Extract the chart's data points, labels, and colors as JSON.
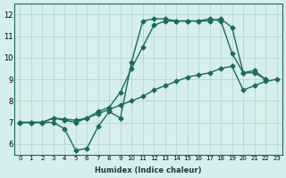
{
  "title": "",
  "xlabel": "Humidex (Indice chaleur)",
  "ylabel": "",
  "bg_color": "#d6eeed",
  "line_color": "#1a6b5e",
  "grid_color": "#b0cece",
  "xlim": [
    0,
    23
  ],
  "ylim": [
    5.5,
    12.5
  ],
  "xticks": [
    0,
    1,
    2,
    3,
    4,
    5,
    6,
    7,
    8,
    9,
    10,
    11,
    12,
    13,
    14,
    15,
    16,
    17,
    18,
    19,
    20,
    21,
    22,
    23
  ],
  "yticks": [
    6,
    7,
    8,
    9,
    10,
    11,
    12
  ],
  "line1_x": [
    0,
    1,
    2,
    3,
    4,
    5,
    6,
    7,
    8,
    9,
    10,
    11,
    12,
    13,
    14,
    15,
    16,
    17,
    18,
    19,
    20,
    21,
    22,
    23
  ],
  "line1_y": [
    7.0,
    7.0,
    7.0,
    7.0,
    6.7,
    5.7,
    5.8,
    6.8,
    7.5,
    7.2,
    9.8,
    11.7,
    11.8,
    11.8,
    11.7,
    11.7,
    11.7,
    11.8,
    11.7,
    10.2,
    9.3,
    9.3,
    9.0,
    null
  ],
  "line2_x": [
    0,
    1,
    2,
    3,
    4,
    5,
    6,
    7,
    8,
    9,
    10,
    11,
    12,
    13,
    14,
    15,
    16,
    17,
    18,
    19,
    20,
    21,
    22,
    23
  ],
  "line2_y": [
    7.0,
    7.0,
    7.0,
    7.2,
    7.1,
    7.0,
    7.2,
    7.5,
    7.7,
    8.4,
    9.5,
    10.5,
    11.5,
    11.7,
    11.7,
    11.7,
    11.7,
    11.7,
    11.8,
    11.4,
    9.3,
    9.4,
    9.0,
    null
  ],
  "line3_x": [
    0,
    1,
    2,
    3,
    4,
    5,
    6,
    7,
    8,
    9,
    10,
    11,
    12,
    13,
    14,
    15,
    16,
    17,
    18,
    19,
    20,
    21,
    22,
    23
  ],
  "line3_y": [
    7.0,
    7.0,
    7.0,
    7.2,
    7.15,
    7.1,
    7.2,
    7.4,
    7.6,
    7.8,
    8.0,
    8.2,
    8.5,
    8.7,
    8.9,
    9.1,
    9.2,
    9.3,
    9.5,
    9.6,
    8.5,
    8.7,
    8.9,
    9.0
  ]
}
